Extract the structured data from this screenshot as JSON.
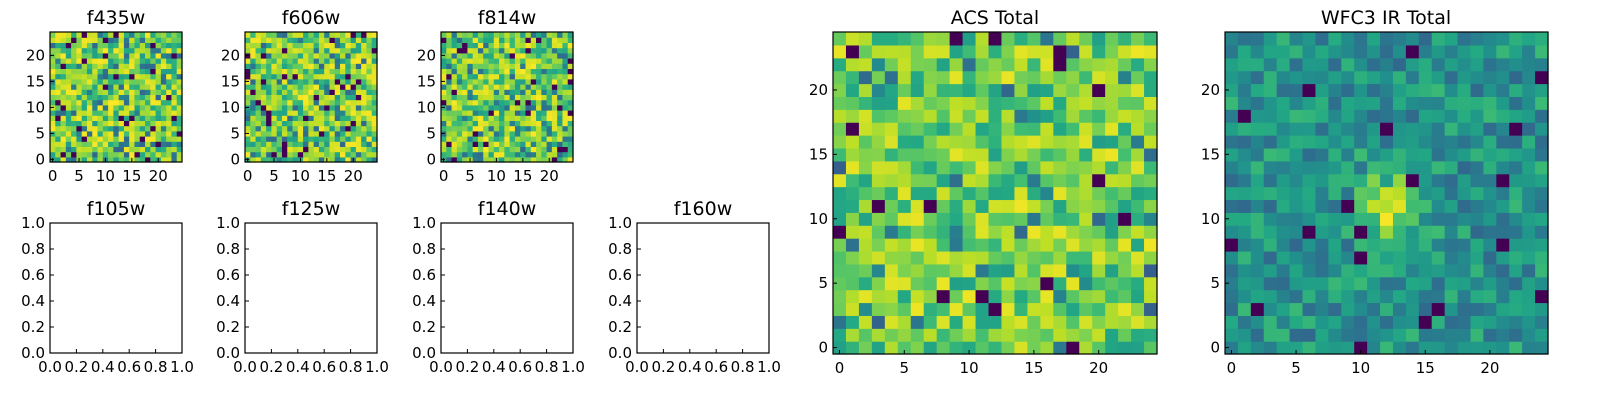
{
  "figure": {
    "panels": [
      {
        "id": "f435w",
        "title": "f435w",
        "kind": "image",
        "xticks": [
          0,
          5,
          10,
          15,
          20
        ],
        "yticks": [
          0,
          5,
          10,
          15,
          20
        ]
      },
      {
        "id": "f606w",
        "title": "f606w",
        "kind": "image",
        "xticks": [
          0,
          5,
          10,
          15,
          20
        ],
        "yticks": [
          0,
          5,
          10,
          15,
          20
        ]
      },
      {
        "id": "f814w",
        "title": "f814w",
        "kind": "image",
        "xticks": [
          0,
          5,
          10,
          15,
          20
        ],
        "yticks": [
          0,
          5,
          10,
          15,
          20
        ]
      },
      {
        "id": "f105w",
        "title": "f105w",
        "kind": "empty",
        "xticks": [
          "0.0",
          "0.2",
          "0.4",
          "0.6",
          "0.8",
          "1.0"
        ],
        "yticks": [
          "0.0",
          "0.2",
          "0.4",
          "0.6",
          "0.8",
          "1.0"
        ]
      },
      {
        "id": "f125w",
        "title": "f125w",
        "kind": "empty",
        "xticks": [
          "0.0",
          "0.2",
          "0.4",
          "0.6",
          "0.8",
          "1.0"
        ],
        "yticks": [
          "0.0",
          "0.2",
          "0.4",
          "0.6",
          "0.8",
          "1.0"
        ]
      },
      {
        "id": "f140w",
        "title": "f140w",
        "kind": "empty",
        "xticks": [
          "0.0",
          "0.2",
          "0.4",
          "0.6",
          "0.8",
          "1.0"
        ],
        "yticks": [
          "0.0",
          "0.2",
          "0.4",
          "0.6",
          "0.8",
          "1.0"
        ]
      },
      {
        "id": "f160w",
        "title": "f160w",
        "kind": "empty",
        "xticks": [
          "0.0",
          "0.2",
          "0.4",
          "0.6",
          "0.8",
          "1.0"
        ],
        "yticks": [
          "0.0",
          "0.2",
          "0.4",
          "0.6",
          "0.8",
          "1.0"
        ]
      },
      {
        "id": "acs-total",
        "title": "ACS Total",
        "kind": "image",
        "xticks": [
          0,
          5,
          10,
          15,
          20
        ],
        "yticks": [
          0,
          5,
          10,
          15,
          20
        ]
      },
      {
        "id": "wfc3-ir-total",
        "title": "WFC3 IR Total",
        "kind": "image",
        "xticks": [
          0,
          5,
          10,
          15,
          20
        ],
        "yticks": [
          0,
          5,
          10,
          15,
          20
        ]
      }
    ]
  },
  "chart_data": {
    "type": "heatmap",
    "colormap": "viridis",
    "grid_size": [
      25,
      25
    ],
    "image_extent": [
      -0.5,
      24.5
    ],
    "empty_axes_range": [
      0,
      1
    ],
    "panels_with_images": [
      "f435w",
      "f606w",
      "f814w",
      "ACS Total",
      "WFC3 IR Total"
    ],
    "empty_panels": [
      "f105w",
      "f125w",
      "f140w",
      "f160w"
    ],
    "pixel_values_note": "noise-like 25x25 pixel maps; per-pixel values are not legible in the screenshot",
    "colors": {
      "viridis_dark": "#440154",
      "viridis_blue": "#3b528b",
      "viridis_teal": "#21918c",
      "viridis_green": "#5ec962",
      "viridis_yellow": "#fde725"
    }
  }
}
